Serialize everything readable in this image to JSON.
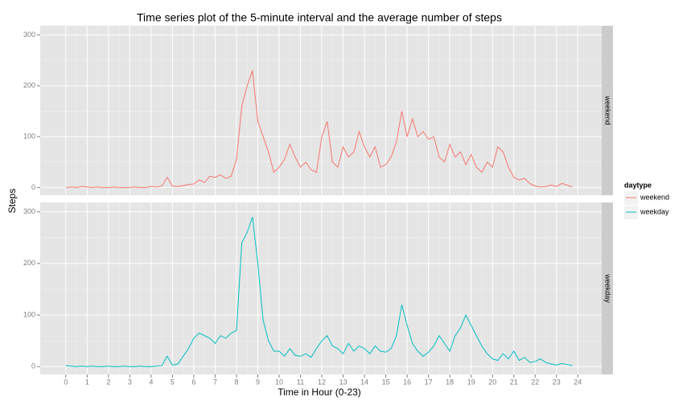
{
  "chart_data": {
    "type": "line",
    "title": "Time series plot of the 5-minute interval and the average number of steps",
    "xlabel": "Time in Hour (0-23)",
    "ylabel": "Steps",
    "legend_title": "daytype",
    "facet": true,
    "grid": true,
    "x": [
      0,
      0.25,
      0.5,
      0.75,
      1,
      1.25,
      1.5,
      1.75,
      2,
      2.25,
      2.5,
      2.75,
      3,
      3.25,
      3.5,
      3.75,
      4,
      4.25,
      4.5,
      4.75,
      5,
      5.25,
      5.5,
      5.75,
      6,
      6.25,
      6.5,
      6.75,
      7,
      7.25,
      7.5,
      7.75,
      8,
      8.25,
      8.5,
      8.75,
      9,
      9.25,
      9.5,
      9.75,
      10,
      10.25,
      10.5,
      10.75,
      11,
      11.25,
      11.5,
      11.75,
      12,
      12.25,
      12.5,
      12.75,
      13,
      13.25,
      13.5,
      13.75,
      14,
      14.25,
      14.5,
      14.75,
      15,
      15.25,
      15.5,
      15.75,
      16,
      16.25,
      16.5,
      16.75,
      17,
      17.25,
      17.5,
      17.75,
      18,
      18.25,
      18.5,
      18.75,
      19,
      19.25,
      19.5,
      19.75,
      20,
      20.25,
      20.5,
      20.75,
      21,
      21.25,
      21.5,
      21.75,
      22,
      22.25,
      22.5,
      22.75,
      23,
      23.25,
      23.5,
      23.75
    ],
    "series": [
      {
        "name": "weekend",
        "color": "#f8766d",
        "values": [
          0,
          1,
          0,
          2,
          1,
          0,
          1,
          0,
          0,
          1,
          0,
          0,
          0,
          1,
          0,
          0,
          2,
          1,
          3,
          20,
          3,
          2,
          4,
          6,
          7,
          15,
          10,
          22,
          20,
          25,
          18,
          22,
          55,
          160,
          200,
          230,
          130,
          100,
          70,
          30,
          40,
          55,
          85,
          60,
          40,
          50,
          35,
          30,
          100,
          130,
          50,
          40,
          80,
          60,
          70,
          110,
          80,
          60,
          80,
          40,
          45,
          60,
          90,
          150,
          100,
          135,
          100,
          110,
          95,
          100,
          60,
          50,
          85,
          60,
          70,
          45,
          65,
          40,
          30,
          50,
          40,
          80,
          70,
          40,
          20,
          15,
          18,
          8,
          3,
          1,
          2,
          5,
          2,
          8,
          5,
          1
        ]
      },
      {
        "name": "weekday",
        "color": "#00bfc4",
        "values": [
          2,
          1,
          0,
          1,
          0,
          1,
          0,
          0,
          1,
          0,
          0,
          1,
          0,
          0,
          1,
          0,
          0,
          1,
          2,
          20,
          3,
          5,
          20,
          35,
          55,
          65,
          60,
          55,
          45,
          60,
          55,
          65,
          70,
          240,
          260,
          290,
          200,
          90,
          50,
          30,
          30,
          20,
          35,
          22,
          20,
          25,
          18,
          35,
          50,
          60,
          40,
          35,
          25,
          45,
          30,
          40,
          35,
          25,
          40,
          30,
          28,
          35,
          60,
          120,
          80,
          45,
          30,
          20,
          28,
          40,
          60,
          45,
          30,
          60,
          75,
          100,
          80,
          60,
          40,
          25,
          15,
          12,
          25,
          15,
          30,
          12,
          18,
          8,
          10,
          15,
          8,
          5,
          3,
          6,
          4,
          2
        ]
      }
    ],
    "xlim": [
      -1.2,
      25.12
    ],
    "xticks": [
      0,
      1,
      2,
      3,
      4,
      5,
      6,
      7,
      8,
      9,
      10,
      11,
      12,
      13,
      14,
      15,
      16,
      17,
      18,
      19,
      20,
      21,
      22,
      23,
      24
    ],
    "ylim": [
      -15.2,
      318.2
    ],
    "yticks": [
      0,
      100,
      200,
      300
    ]
  }
}
